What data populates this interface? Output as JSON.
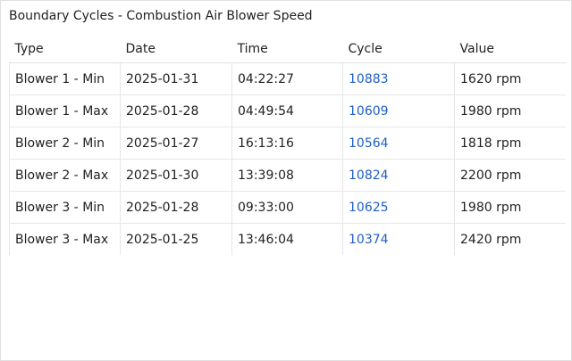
{
  "panel": {
    "title": "Boundary Cycles - Combustion Air Blower Speed"
  },
  "table": {
    "columns": [
      "Type",
      "Date",
      "Time",
      "Cycle",
      "Value"
    ],
    "rows": [
      {
        "type": "Blower 1 - Min",
        "date": "2025-01-31",
        "time": "04:22:27",
        "cycle": "10883",
        "value": "1620 rpm"
      },
      {
        "type": "Blower 1 - Max",
        "date": "2025-01-28",
        "time": "04:49:54",
        "cycle": "10609",
        "value": "1980 rpm"
      },
      {
        "type": "Blower 2 - Min",
        "date": "2025-01-27",
        "time": "16:13:16",
        "cycle": "10564",
        "value": "1818 rpm"
      },
      {
        "type": "Blower 2 - Max",
        "date": "2025-01-30",
        "time": "13:39:08",
        "cycle": "10824",
        "value": "2200 rpm"
      },
      {
        "type": "Blower 3 - Min",
        "date": "2025-01-28",
        "time": "09:33:00",
        "cycle": "10625",
        "value": "1980 rpm"
      },
      {
        "type": "Blower 3 - Max",
        "date": "2025-01-25",
        "time": "13:46:04",
        "cycle": "10374",
        "value": "2420 rpm"
      }
    ]
  },
  "colors": {
    "link": "#1f5fc8",
    "border": "#e0e0e0",
    "text": "#212121"
  }
}
